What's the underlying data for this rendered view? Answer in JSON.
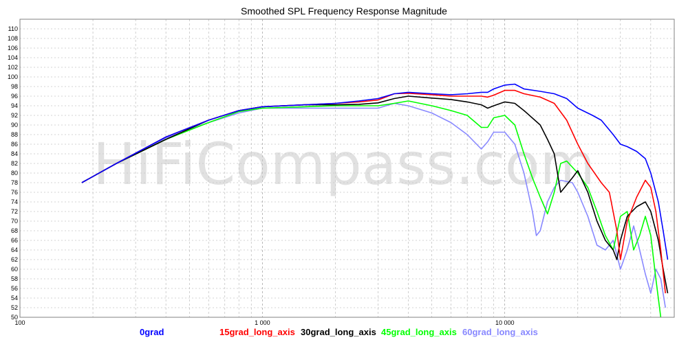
{
  "chart_data": {
    "type": "line",
    "title": "Smoothed SPL Frequency Response Magnitude",
    "watermark": "HiFiCompass.com",
    "x_scale": "log",
    "xlim": [
      100,
      50000
    ],
    "ylim": [
      50,
      112
    ],
    "x_tick_labels": [
      {
        "value": 100,
        "label": "100"
      },
      {
        "value": 1000,
        "label": "1 000"
      },
      {
        "value": 10000,
        "label": "10 000"
      }
    ],
    "y_ticks": [
      50,
      52,
      54,
      56,
      58,
      60,
      62,
      64,
      66,
      68,
      70,
      72,
      74,
      76,
      78,
      80,
      82,
      84,
      86,
      88,
      90,
      92,
      94,
      96,
      98,
      100,
      102,
      104,
      106,
      108,
      110
    ],
    "grid": true,
    "legend_position": "bottom",
    "series": [
      {
        "name": "0grad",
        "color": "#0000ff",
        "x": [
          180,
          250,
          400,
          600,
          800,
          1000,
          1500,
          2000,
          2500,
          3000,
          3500,
          4000,
          5000,
          6000,
          7000,
          8000,
          8500,
          9000,
          10000,
          11000,
          12000,
          14000,
          16000,
          18000,
          20000,
          23000,
          25000,
          28000,
          30000,
          32000,
          35000,
          38000,
          40000,
          43000,
          45000,
          47000
        ],
        "y": [
          78,
          82,
          87.5,
          91,
          93,
          93.8,
          94.2,
          94.5,
          95,
          95.5,
          96.5,
          96.8,
          96.5,
          96.3,
          96.5,
          96.8,
          96.8,
          97.5,
          98.3,
          98.5,
          97.5,
          97,
          96.5,
          95.5,
          93.5,
          92,
          91,
          88,
          86,
          85.5,
          84.5,
          83,
          80,
          74,
          68,
          62
        ]
      },
      {
        "name": "15grad_long_axis",
        "color": "#ff0000",
        "x": [
          180,
          250,
          400,
          600,
          800,
          1000,
          1500,
          2000,
          2500,
          3000,
          3500,
          4000,
          5000,
          6000,
          7000,
          8000,
          8500,
          9000,
          10000,
          11000,
          12000,
          14000,
          16000,
          18000,
          20000,
          22000,
          25000,
          27000,
          29000,
          30000,
          32000,
          35000,
          38000,
          40000,
          42000,
          44000,
          46000
        ],
        "y": [
          78,
          82,
          87.5,
          91,
          93,
          93.8,
          94.2,
          94.5,
          94.8,
          95.2,
          96.5,
          96.6,
          96.3,
          96,
          96,
          96,
          95.8,
          96.2,
          97.2,
          97.2,
          96.5,
          95.8,
          94.5,
          91,
          86,
          82,
          78,
          76,
          68,
          62,
          70,
          75,
          78.5,
          77,
          72,
          64,
          55
        ]
      },
      {
        "name": "30grad_long_axis",
        "color": "#000000",
        "x": [
          180,
          250,
          400,
          600,
          800,
          1000,
          1500,
          2000,
          2500,
          3000,
          3500,
          4000,
          5000,
          6000,
          7000,
          8000,
          8500,
          9000,
          10000,
          11000,
          12000,
          14000,
          15000,
          16000,
          17000,
          19000,
          20000,
          22000,
          24000,
          26000,
          28000,
          29000,
          30000,
          32000,
          35000,
          38000,
          40000,
          43000,
          45000,
          47000
        ],
        "y": [
          78,
          82,
          87,
          91,
          93,
          93.8,
          94.2,
          94.2,
          94.3,
          94.6,
          95.5,
          96,
          95.6,
          95.3,
          94.8,
          94.2,
          93.5,
          94,
          94.8,
          94.5,
          93,
          90,
          87,
          84,
          76,
          79,
          80.5,
          76,
          70,
          66,
          64,
          62,
          66,
          71,
          73,
          74,
          72,
          66,
          60,
          55
        ]
      },
      {
        "name": "45grad_long_axis",
        "color": "#00ff00",
        "x": [
          180,
          250,
          400,
          600,
          800,
          1000,
          1500,
          2000,
          2500,
          3000,
          3500,
          4000,
          5000,
          6000,
          7000,
          8000,
          8500,
          9000,
          10000,
          11000,
          12000,
          13000,
          14000,
          15000,
          16000,
          17000,
          18000,
          20000,
          22000,
          24000,
          26000,
          28000,
          30000,
          32000,
          34000,
          36000,
          38000,
          40000,
          42000,
          44000
        ],
        "y": [
          78,
          82,
          87,
          90.5,
          92.8,
          93.5,
          93.8,
          94,
          94,
          94,
          94.5,
          95,
          94,
          93,
          92,
          89.5,
          89.5,
          91.5,
          92,
          90,
          84,
          79,
          75,
          71.5,
          76,
          82,
          82.5,
          80,
          77,
          72,
          67,
          64,
          71,
          72,
          64,
          67,
          71,
          67,
          58,
          50
        ]
      },
      {
        "name": "60grad_long_axis",
        "color": "#8888ff",
        "x": [
          180,
          250,
          400,
          600,
          800,
          1000,
          1500,
          2000,
          2500,
          3000,
          3500,
          4000,
          5000,
          6000,
          7000,
          8000,
          8500,
          9000,
          10000,
          11000,
          12000,
          13000,
          13500,
          14000,
          15000,
          16000,
          17000,
          19000,
          20000,
          22000,
          24000,
          26000,
          28000,
          30000,
          32000,
          34000,
          36000,
          38000,
          40000,
          42000,
          44000,
          46000
        ],
        "y": [
          78,
          82,
          87.3,
          90.5,
          92.5,
          93.5,
          93.5,
          93.5,
          93.5,
          93.5,
          94.5,
          94,
          92.5,
          90.5,
          88,
          85,
          86.5,
          88.5,
          88.5,
          86,
          80,
          72,
          67,
          68,
          74,
          77,
          78.5,
          78,
          76,
          71,
          65,
          64,
          66,
          60,
          64,
          69,
          64,
          59,
          55,
          60,
          58,
          52
        ]
      }
    ]
  }
}
